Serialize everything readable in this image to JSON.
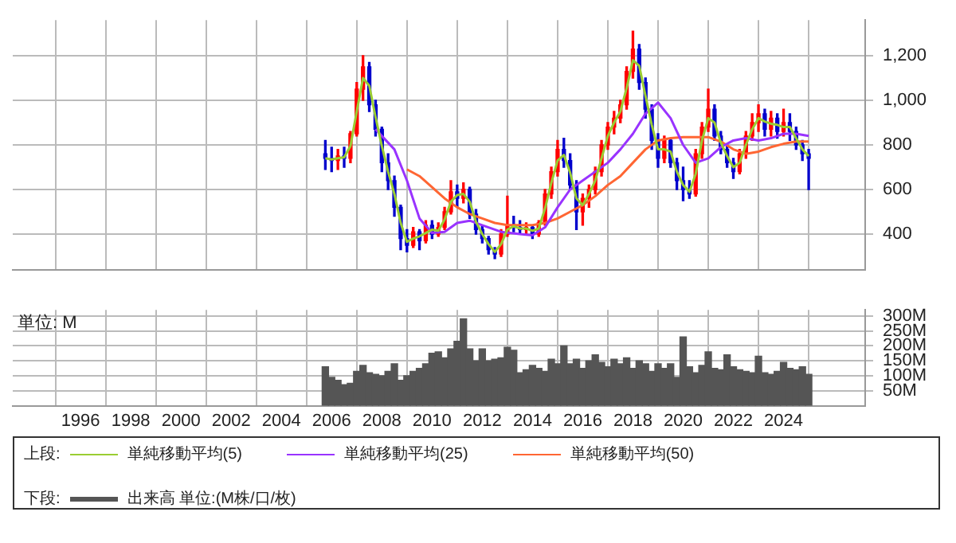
{
  "chart_data": [
    {
      "type": "candlestick",
      "legend_title": "上段:",
      "legend": "bottom",
      "grid": true,
      "tick_labels": "y",
      "xlim": [
        1993.3,
        2027.25
      ],
      "xticks": [
        1996,
        1998,
        2000,
        2002,
        2004,
        2006,
        2008,
        2010,
        2012,
        2014,
        2016,
        2018,
        2020,
        2022,
        2024
      ],
      "ylim": [
        240,
        1360
      ],
      "yticks": [
        400,
        600,
        800,
        {
          "value": 1000,
          "label": "1,000"
        },
        {
          "value": 1200,
          "label": "1,200"
        }
      ],
      "x": [
        2005.75,
        2006,
        2006.25,
        2006.5,
        2006.75,
        2007,
        2007.25,
        2007.5,
        2007.75,
        2008,
        2008.25,
        2008.5,
        2008.75,
        2009,
        2009.25,
        2009.5,
        2009.75,
        2010,
        2010.25,
        2010.5,
        2010.75,
        2011,
        2011.25,
        2011.5,
        2011.75,
        2012,
        2012.25,
        2012.5,
        2012.75,
        2013,
        2013.25,
        2013.5,
        2013.75,
        2014,
        2014.25,
        2014.5,
        2014.75,
        2015,
        2015.25,
        2015.5,
        2015.75,
        2016,
        2016.25,
        2016.5,
        2016.75,
        2017,
        2017.25,
        2017.5,
        2017.75,
        2018,
        2018.25,
        2018.5,
        2018.75,
        2019,
        2019.25,
        2019.5,
        2019.75,
        2020,
        2020.25,
        2020.5,
        2020.75,
        2021,
        2021.25,
        2021.5,
        2021.75,
        2022,
        2022.25,
        2022.5,
        2022.75,
        2023,
        2023.25,
        2023.5,
        2023.75,
        2024,
        2024.25,
        2024.5,
        2024.75,
        2025
      ],
      "ohlc": [
        [
          760,
          820,
          690,
          740
        ],
        [
          740,
          790,
          680,
          730
        ],
        [
          730,
          780,
          690,
          750
        ],
        [
          750,
          790,
          700,
          740
        ],
        [
          740,
          860,
          720,
          850
        ],
        [
          850,
          1080,
          840,
          1050
        ],
        [
          1050,
          1200,
          1000,
          1150
        ],
        [
          1150,
          1170,
          950,
          980
        ],
        [
          980,
          1000,
          840,
          870
        ],
        [
          870,
          880,
          680,
          720
        ],
        [
          720,
          760,
          600,
          640
        ],
        [
          640,
          660,
          480,
          520
        ],
        [
          520,
          530,
          330,
          380
        ],
        [
          380,
          420,
          320,
          350
        ],
        [
          350,
          430,
          340,
          410
        ],
        [
          410,
          420,
          330,
          370
        ],
        [
          370,
          460,
          360,
          440
        ],
        [
          440,
          460,
          380,
          400
        ],
        [
          400,
          450,
          390,
          430
        ],
        [
          430,
          520,
          420,
          500
        ],
        [
          500,
          640,
          490,
          590
        ],
        [
          590,
          620,
          520,
          560
        ],
        [
          560,
          630,
          540,
          600
        ],
        [
          600,
          610,
          470,
          490
        ],
        [
          490,
          510,
          400,
          420
        ],
        [
          420,
          440,
          360,
          380
        ],
        [
          380,
          390,
          310,
          330
        ],
        [
          330,
          340,
          290,
          310
        ],
        [
          310,
          420,
          300,
          400
        ],
        [
          400,
          570,
          390,
          440
        ],
        [
          440,
          480,
          410,
          430
        ],
        [
          430,
          460,
          400,
          420
        ],
        [
          420,
          450,
          400,
          430
        ],
        [
          430,
          440,
          380,
          400
        ],
        [
          400,
          460,
          390,
          450
        ],
        [
          450,
          600,
          440,
          580
        ],
        [
          580,
          700,
          560,
          680
        ],
        [
          680,
          820,
          660,
          780
        ],
        [
          780,
          830,
          700,
          730
        ],
        [
          730,
          760,
          600,
          620
        ],
        [
          620,
          640,
          420,
          500
        ],
        [
          500,
          580,
          440,
          560
        ],
        [
          560,
          620,
          520,
          600
        ],
        [
          600,
          700,
          580,
          680
        ],
        [
          680,
          820,
          660,
          800
        ],
        [
          800,
          900,
          780,
          880
        ],
        [
          880,
          950,
          850,
          920
        ],
        [
          920,
          1000,
          900,
          980
        ],
        [
          980,
          1150,
          960,
          1130
        ],
        [
          1130,
          1310,
          1100,
          1230
        ],
        [
          1230,
          1250,
          1050,
          1080
        ],
        [
          1080,
          1100,
          920,
          960
        ],
        [
          960,
          980,
          780,
          820
        ],
        [
          820,
          850,
          700,
          740
        ],
        [
          740,
          840,
          720,
          820
        ],
        [
          820,
          830,
          700,
          720
        ],
        [
          720,
          740,
          600,
          640
        ],
        [
          640,
          700,
          550,
          600
        ],
        [
          600,
          640,
          560,
          580
        ],
        [
          580,
          780,
          570,
          760
        ],
        [
          760,
          900,
          740,
          880
        ],
        [
          880,
          1050,
          860,
          960
        ],
        [
          960,
          980,
          820,
          840
        ],
        [
          840,
          860,
          760,
          780
        ],
        [
          780,
          800,
          700,
          720
        ],
        [
          720,
          740,
          650,
          680
        ],
        [
          680,
          780,
          670,
          760
        ],
        [
          760,
          860,
          740,
          840
        ],
        [
          840,
          940,
          820,
          900
        ],
        [
          900,
          980,
          860,
          940
        ],
        [
          940,
          960,
          840,
          870
        ],
        [
          870,
          950,
          840,
          920
        ],
        [
          920,
          940,
          830,
          860
        ],
        [
          860,
          960,
          840,
          900
        ],
        [
          900,
          940,
          820,
          860
        ],
        [
          860,
          880,
          780,
          800
        ],
        [
          800,
          820,
          730,
          760
        ],
        [
          760,
          780,
          600,
          740
        ]
      ],
      "series": [
        {
          "name": "単純移動平均(5)",
          "type": "line",
          "color": "#9acd32",
          "values": [
            740,
            735,
            740,
            745,
            795,
            950,
            1100,
            1065,
            925,
            795,
            680,
            580,
            450,
            365,
            380,
            390,
            405,
            420,
            415,
            465,
            545,
            575,
            580,
            545,
            455,
            400,
            355,
            320,
            355,
            420,
            435,
            425,
            425,
            415,
            425,
            515,
            630,
            730,
            755,
            675,
            560,
            530,
            580,
            640,
            740,
            840,
            900,
            950,
            1055,
            1180,
            1155,
            1020,
            890,
            780,
            780,
            770,
            680,
            620,
            590,
            670,
            820,
            920,
            900,
            810,
            750,
            700,
            720,
            800,
            870,
            920,
            905,
            895,
            890,
            880,
            880,
            830,
            780,
            750
          ]
        },
        {
          "name": "単純移動平均(25)",
          "type": "line",
          "color": "#9933ff",
          "x": [
            2007.75,
            2008.5,
            2009,
            2009.5,
            2010,
            2010.5,
            2011,
            2011.5,
            2012,
            2012.75,
            2013.5,
            2014,
            2014.5,
            2015,
            2015.5,
            2016,
            2016.5,
            2017,
            2017.5,
            2018,
            2018.5,
            2019,
            2019.5,
            2020,
            2020.5,
            2021,
            2021.5,
            2022,
            2022.5,
            2023,
            2023.5,
            2024,
            2024.5,
            2025
          ],
          "values": [
            870,
            780,
            640,
            470,
            405,
            410,
            450,
            460,
            440,
            410,
            400,
            395,
            430,
            520,
            600,
            640,
            680,
            720,
            780,
            850,
            940,
            990,
            920,
            800,
            720,
            740,
            790,
            820,
            830,
            820,
            830,
            850,
            850,
            840
          ]
        },
        {
          "name": "単純移動平均(50)",
          "type": "line",
          "color": "#ff6633",
          "x": [
            2009,
            2009.5,
            2010,
            2010.5,
            2011,
            2011.5,
            2012,
            2012.5,
            2013,
            2013.5,
            2014,
            2014.5,
            2015,
            2015.5,
            2016,
            2016.5,
            2017,
            2017.5,
            2018,
            2018.5,
            2019,
            2019.5,
            2020,
            2020.5,
            2021,
            2021.5,
            2022,
            2022.5,
            2023,
            2023.5,
            2024,
            2024.5,
            2025
          ],
          "values": [
            690,
            660,
            610,
            560,
            520,
            490,
            470,
            450,
            440,
            440,
            440,
            450,
            470,
            500,
            530,
            570,
            620,
            660,
            720,
            780,
            820,
            830,
            835,
            835,
            835,
            815,
            780,
            760,
            770,
            790,
            805,
            815,
            815
          ]
        }
      ]
    },
    {
      "type": "bar",
      "legend_title": "下段:",
      "legend": "bottom",
      "grid": true,
      "ylabel": "単位: M",
      "xlim": [
        1993.3,
        2027.25
      ],
      "xticks": [
        1996,
        1998,
        2000,
        2002,
        2004,
        2006,
        2008,
        2010,
        2012,
        2014,
        2016,
        2018,
        2020,
        2022,
        2024
      ],
      "ylim": [
        0,
        320
      ],
      "yticks": [
        {
          "value": 50,
          "label": "50M"
        },
        {
          "value": 100,
          "label": "100M"
        },
        {
          "value": 150,
          "label": "150M"
        },
        {
          "value": 200,
          "label": "200M"
        },
        {
          "value": 250,
          "label": "250M"
        },
        {
          "value": 300,
          "label": "300M"
        }
      ],
      "x": [
        2005.75,
        2006,
        2006.25,
        2006.5,
        2006.75,
        2007,
        2007.25,
        2007.5,
        2007.75,
        2008,
        2008.25,
        2008.5,
        2008.75,
        2009,
        2009.25,
        2009.5,
        2009.75,
        2010,
        2010.25,
        2010.5,
        2010.75,
        2011,
        2011.25,
        2011.5,
        2011.75,
        2012,
        2012.25,
        2012.5,
        2012.75,
        2013,
        2013.25,
        2013.5,
        2013.75,
        2014,
        2014.25,
        2014.5,
        2014.75,
        2015,
        2015.25,
        2015.5,
        2015.75,
        2016,
        2016.25,
        2016.5,
        2016.75,
        2017,
        2017.25,
        2017.5,
        2017.75,
        2018,
        2018.25,
        2018.5,
        2018.75,
        2019,
        2019.25,
        2019.5,
        2019.75,
        2020,
        2020.25,
        2020.5,
        2020.75,
        2021,
        2021.25,
        2021.5,
        2021.75,
        2022,
        2022.25,
        2022.5,
        2022.75,
        2023,
        2023.25,
        2023.5,
        2023.75,
        2024,
        2024.25,
        2024.5,
        2024.75,
        2025
      ],
      "series": [
        {
          "name": "出来高 単位:(M株/口/枚)",
          "color": "#555555",
          "values": [
            130,
            95,
            85,
            70,
            75,
            115,
            135,
            110,
            105,
            100,
            115,
            140,
            85,
            100,
            115,
            125,
            140,
            175,
            180,
            160,
            190,
            215,
            290,
            190,
            150,
            190,
            150,
            155,
            160,
            195,
            185,
            110,
            120,
            135,
            125,
            115,
            155,
            140,
            200,
            140,
            155,
            125,
            150,
            170,
            145,
            130,
            155,
            140,
            160,
            125,
            150,
            140,
            115,
            140,
            125,
            140,
            95,
            230,
            130,
            110,
            135,
            180,
            125,
            120,
            170,
            130,
            120,
            115,
            110,
            165,
            110,
            105,
            115,
            145,
            125,
            120,
            130,
            105
          ]
        }
      ]
    }
  ]
}
